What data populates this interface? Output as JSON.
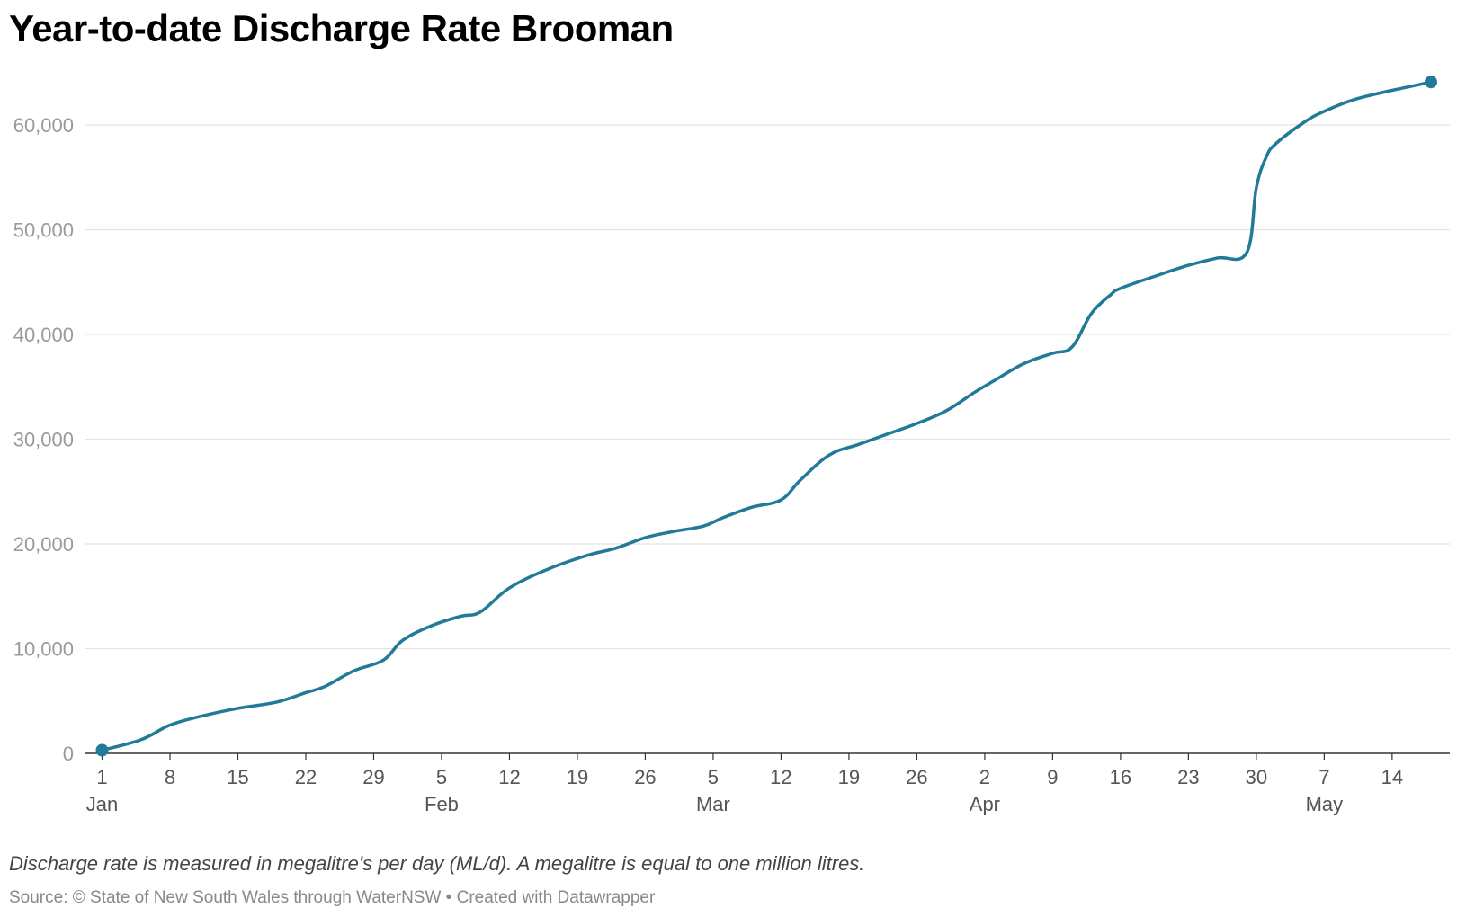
{
  "title": "Year-to-date Discharge Rate Brooman",
  "footer": {
    "note": "Discharge rate is measured in megalitre's per day (ML/d). A megalitre is equal to one million litres.",
    "source": "Source: © State of New South Wales through WaterNSW • Created with Datawrapper"
  },
  "colors": {
    "line": "#217a98",
    "grid": "#e3e3e3",
    "axis": "#333333",
    "tick_label": "#9a9a9a",
    "x_label": "#555555"
  },
  "chart_data": {
    "type": "line",
    "title": "Year-to-date Discharge Rate Brooman",
    "xlabel": "",
    "ylabel": "",
    "ylim": [
      0,
      64000
    ],
    "grid": true,
    "y_ticks": [
      0,
      10000,
      20000,
      30000,
      40000,
      50000,
      60000
    ],
    "y_tick_labels": [
      "0",
      "10,000",
      "20,000",
      "30,000",
      "40,000",
      "50,000",
      "60,000"
    ],
    "x_ticks": [
      {
        "day": 1,
        "label": "1",
        "month": "Jan"
      },
      {
        "day": 8,
        "label": "8"
      },
      {
        "day": 15,
        "label": "15"
      },
      {
        "day": 22,
        "label": "22"
      },
      {
        "day": 29,
        "label": "29"
      },
      {
        "day": 36,
        "label": "5",
        "month": "Feb"
      },
      {
        "day": 43,
        "label": "12"
      },
      {
        "day": 50,
        "label": "19"
      },
      {
        "day": 57,
        "label": "26"
      },
      {
        "day": 64,
        "label": "5",
        "month": "Mar"
      },
      {
        "day": 71,
        "label": "12"
      },
      {
        "day": 78,
        "label": "19"
      },
      {
        "day": 85,
        "label": "26"
      },
      {
        "day": 92,
        "label": "2",
        "month": "Apr"
      },
      {
        "day": 99,
        "label": "9"
      },
      {
        "day": 106,
        "label": "16"
      },
      {
        "day": 113,
        "label": "23"
      },
      {
        "day": 120,
        "label": "30"
      },
      {
        "day": 127,
        "label": "7",
        "month": "May"
      },
      {
        "day": 134,
        "label": "14"
      }
    ],
    "series": [
      {
        "x": [
          1,
          5,
          8,
          11,
          15,
          19,
          22,
          24,
          27,
          30,
          32,
          35,
          38,
          40,
          43,
          47,
          51,
          54,
          57,
          60,
          63,
          65,
          68,
          71,
          73,
          76,
          79,
          82,
          85,
          88,
          91,
          93,
          96,
          99,
          101,
          103,
          105,
          106,
          110,
          113,
          116,
          119,
          120,
          121,
          122,
          125,
          127,
          130,
          133,
          135,
          138
        ],
        "y": [
          300,
          1300,
          2700,
          3500,
          4300,
          4900,
          5800,
          6400,
          7900,
          8900,
          10800,
          12200,
          13100,
          13500,
          15800,
          17600,
          18900,
          19600,
          20600,
          21200,
          21700,
          22500,
          23500,
          24200,
          26100,
          28500,
          29500,
          30500,
          31500,
          32700,
          34500,
          35600,
          37200,
          38200,
          38800,
          42000,
          43800,
          44400,
          45700,
          46600,
          47300,
          47800,
          54000,
          56900,
          58200,
          60300,
          61300,
          62400,
          63100,
          63500,
          64100
        ]
      }
    ]
  }
}
